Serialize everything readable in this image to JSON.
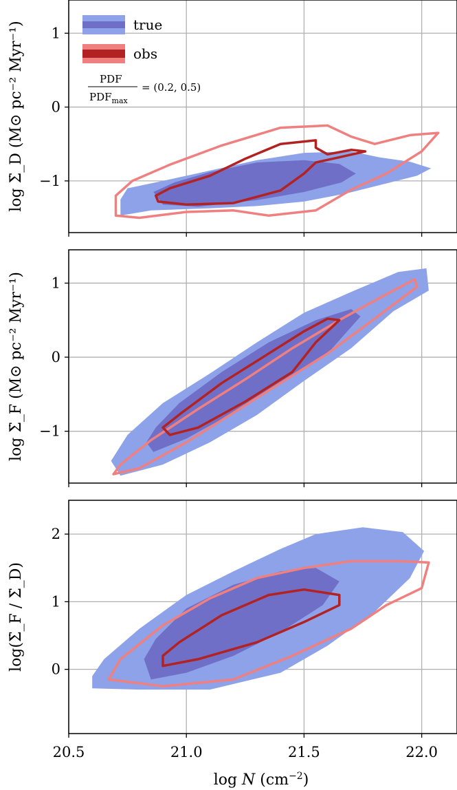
{
  "figure": {
    "x_axis": {
      "label": "log N (cm⁻²)",
      "range": [
        20.5,
        22.15
      ],
      "ticks": [
        20.5,
        21.0,
        21.5,
        22.0
      ],
      "tick_labels": [
        "20.5",
        "21.0",
        "21.5",
        "22.0"
      ]
    },
    "legend": {
      "entries": [
        {
          "label": "true",
          "color_outer": "#8da2e8",
          "color_inner": "#6f6fc7"
        },
        {
          "label": "obs",
          "color_outer": "#f08080",
          "color_inner": "#b22222"
        }
      ],
      "note": "PDF/PDFmax = (0.2, 0.5)"
    }
  },
  "chart_data": [
    {
      "type": "contour",
      "ylabel": "log Σ̇_D (M⊙ pc⁻² Myr⁻¹)",
      "ylim": [
        -1.7,
        1.45
      ],
      "yticks": [
        -1,
        0,
        1
      ],
      "ytick_labels": [
        "−1",
        "0",
        "1"
      ],
      "levels": [
        0.2,
        0.5
      ],
      "series": [
        {
          "name": "true",
          "level": 0.2,
          "fill": "#8da2e8",
          "points": [
            [
              20.72,
              -1.47
            ],
            [
              20.85,
              -1.4
            ],
            [
              21.1,
              -1.37
            ],
            [
              21.3,
              -1.34
            ],
            [
              21.5,
              -1.28
            ],
            [
              21.68,
              -1.17
            ],
            [
              21.83,
              -1.05
            ],
            [
              21.98,
              -0.93
            ],
            [
              22.04,
              -0.83
            ],
            [
              21.95,
              -0.74
            ],
            [
              21.82,
              -0.68
            ],
            [
              21.7,
              -0.6
            ],
            [
              21.5,
              -0.62
            ],
            [
              21.3,
              -0.72
            ],
            [
              21.1,
              -0.86
            ],
            [
              20.9,
              -1.0
            ],
            [
              20.75,
              -1.1
            ],
            [
              20.72,
              -1.25
            ]
          ]
        },
        {
          "name": "true",
          "level": 0.5,
          "fill": "#6f6fc7",
          "points": [
            [
              20.9,
              -1.32
            ],
            [
              21.05,
              -1.35
            ],
            [
              21.3,
              -1.26
            ],
            [
              21.5,
              -1.15
            ],
            [
              21.66,
              -1.02
            ],
            [
              21.72,
              -0.9
            ],
            [
              21.65,
              -0.77
            ],
            [
              21.5,
              -0.72
            ],
            [
              21.3,
              -0.75
            ],
            [
              21.1,
              -0.88
            ],
            [
              20.95,
              -1.02
            ],
            [
              20.86,
              -1.15
            ]
          ]
        },
        {
          "name": "obs",
          "level": 0.2,
          "stroke": "#f08080",
          "points": [
            [
              20.7,
              -1.47
            ],
            [
              20.8,
              -1.5
            ],
            [
              21.0,
              -1.42
            ],
            [
              21.2,
              -1.4
            ],
            [
              21.35,
              -1.47
            ],
            [
              21.55,
              -1.4
            ],
            [
              21.7,
              -1.12
            ],
            [
              21.85,
              -0.9
            ],
            [
              22.0,
              -0.6
            ],
            [
              22.07,
              -0.35
            ],
            [
              21.95,
              -0.38
            ],
            [
              21.8,
              -0.5
            ],
            [
              21.7,
              -0.4
            ],
            [
              21.6,
              -0.25
            ],
            [
              21.4,
              -0.28
            ],
            [
              21.15,
              -0.52
            ],
            [
              20.93,
              -0.78
            ],
            [
              20.77,
              -1.0
            ],
            [
              20.7,
              -1.2
            ]
          ]
        },
        {
          "name": "obs",
          "level": 0.5,
          "stroke": "#b22222",
          "points": [
            [
              20.88,
              -1.28
            ],
            [
              21.0,
              -1.32
            ],
            [
              21.2,
              -1.3
            ],
            [
              21.4,
              -1.13
            ],
            [
              21.5,
              -0.9
            ],
            [
              21.55,
              -0.75
            ],
            [
              21.65,
              -0.68
            ],
            [
              21.76,
              -0.6
            ],
            [
              21.7,
              -0.58
            ],
            [
              21.6,
              -0.64
            ],
            [
              21.55,
              -0.55
            ],
            [
              21.55,
              -0.45
            ],
            [
              21.4,
              -0.5
            ],
            [
              21.25,
              -0.7
            ],
            [
              21.1,
              -0.93
            ],
            [
              20.93,
              -1.1
            ],
            [
              20.87,
              -1.2
            ]
          ]
        }
      ]
    },
    {
      "type": "contour",
      "ylabel": "log Σ̇_F (M⊙ pc⁻² Myr⁻¹)",
      "ylim": [
        -1.7,
        1.45
      ],
      "yticks": [
        -1,
        0,
        1
      ],
      "ytick_labels": [
        "−1",
        "0",
        "1"
      ],
      "levels": [
        0.2,
        0.5
      ],
      "series": [
        {
          "name": "true",
          "level": 0.2,
          "fill": "#8da2e8",
          "points": [
            [
              20.72,
              -1.6
            ],
            [
              20.9,
              -1.45
            ],
            [
              21.1,
              -1.15
            ],
            [
              21.3,
              -0.78
            ],
            [
              21.5,
              -0.32
            ],
            [
              21.7,
              0.12
            ],
            [
              21.88,
              0.62
            ],
            [
              22.03,
              0.9
            ],
            [
              22.02,
              1.2
            ],
            [
              21.9,
              1.15
            ],
            [
              21.7,
              0.88
            ],
            [
              21.5,
              0.6
            ],
            [
              21.3,
              0.2
            ],
            [
              21.1,
              -0.22
            ],
            [
              20.9,
              -0.62
            ],
            [
              20.75,
              -1.05
            ],
            [
              20.68,
              -1.4
            ]
          ]
        },
        {
          "name": "true",
          "level": 0.5,
          "fill": "#6f6fc7",
          "points": [
            [
              20.86,
              -1.28
            ],
            [
              21.0,
              -1.1
            ],
            [
              21.2,
              -0.75
            ],
            [
              21.4,
              -0.35
            ],
            [
              21.6,
              0.05
            ],
            [
              21.74,
              0.55
            ],
            [
              21.7,
              0.65
            ],
            [
              21.55,
              0.5
            ],
            [
              21.35,
              0.2
            ],
            [
              21.15,
              -0.2
            ],
            [
              20.97,
              -0.62
            ],
            [
              20.87,
              -0.95
            ],
            [
              20.83,
              -1.15
            ]
          ]
        },
        {
          "name": "obs",
          "level": 0.2,
          "stroke": "#f08080",
          "points": [
            [
              20.69,
              -1.58
            ],
            [
              20.8,
              -1.5
            ],
            [
              21.0,
              -1.15
            ],
            [
              21.2,
              -0.75
            ],
            [
              21.4,
              -0.35
            ],
            [
              21.6,
              0.05
            ],
            [
              21.8,
              0.52
            ],
            [
              21.98,
              0.95
            ],
            [
              21.97,
              1.05
            ],
            [
              21.85,
              0.85
            ],
            [
              21.65,
              0.5
            ],
            [
              21.45,
              0.12
            ],
            [
              21.25,
              -0.3
            ],
            [
              21.05,
              -0.7
            ],
            [
              20.85,
              -1.12
            ],
            [
              20.72,
              -1.45
            ]
          ]
        },
        {
          "name": "obs",
          "level": 0.5,
          "stroke": "#b22222",
          "points": [
            [
              20.93,
              -1.05
            ],
            [
              21.05,
              -0.95
            ],
            [
              21.25,
              -0.6
            ],
            [
              21.45,
              -0.2
            ],
            [
              21.55,
              0.2
            ],
            [
              21.65,
              0.5
            ],
            [
              21.6,
              0.52
            ],
            [
              21.5,
              0.35
            ],
            [
              21.35,
              0.05
            ],
            [
              21.15,
              -0.35
            ],
            [
              20.98,
              -0.75
            ],
            [
              20.9,
              -0.95
            ]
          ]
        }
      ]
    },
    {
      "type": "contour",
      "ylabel": "log(Σ̇_F / Σ̇_D)",
      "ylim": [
        -0.95,
        2.5
      ],
      "yticks": [
        0,
        1,
        2
      ],
      "ytick_labels": [
        "0",
        "1",
        "2"
      ],
      "levels": [
        0.2,
        0.5
      ],
      "series": [
        {
          "name": "true",
          "level": 0.2,
          "fill": "#8da2e8",
          "points": [
            [
              20.6,
              -0.28
            ],
            [
              20.8,
              -0.3
            ],
            [
              21.1,
              -0.3
            ],
            [
              21.4,
              -0.05
            ],
            [
              21.6,
              0.35
            ],
            [
              21.8,
              0.85
            ],
            [
              21.95,
              1.35
            ],
            [
              22.01,
              1.75
            ],
            [
              21.92,
              2.03
            ],
            [
              21.75,
              2.1
            ],
            [
              21.55,
              2.0
            ],
            [
              21.4,
              1.78
            ],
            [
              21.2,
              1.45
            ],
            [
              21.0,
              1.1
            ],
            [
              20.8,
              0.6
            ],
            [
              20.65,
              0.15
            ],
            [
              20.6,
              -0.1
            ]
          ]
        },
        {
          "name": "true",
          "level": 0.5,
          "fill": "#6f6fc7",
          "points": [
            [
              20.85,
              -0.15
            ],
            [
              21.0,
              -0.05
            ],
            [
              21.2,
              0.2
            ],
            [
              21.4,
              0.55
            ],
            [
              21.58,
              0.95
            ],
            [
              21.65,
              1.3
            ],
            [
              21.55,
              1.5
            ],
            [
              21.4,
              1.45
            ],
            [
              21.2,
              1.25
            ],
            [
              21.0,
              0.9
            ],
            [
              20.87,
              0.45
            ],
            [
              20.82,
              0.15
            ]
          ]
        },
        {
          "name": "obs",
          "level": 0.2,
          "stroke": "#f08080",
          "points": [
            [
              20.67,
              -0.15
            ],
            [
              20.9,
              -0.25
            ],
            [
              21.2,
              -0.15
            ],
            [
              21.45,
              0.2
            ],
            [
              21.7,
              0.6
            ],
            [
              21.85,
              0.95
            ],
            [
              22.0,
              1.2
            ],
            [
              22.03,
              1.58
            ],
            [
              21.9,
              1.6
            ],
            [
              21.7,
              1.6
            ],
            [
              21.5,
              1.5
            ],
            [
              21.3,
              1.35
            ],
            [
              21.1,
              1.05
            ],
            [
              20.9,
              0.65
            ],
            [
              20.72,
              0.15
            ]
          ]
        },
        {
          "name": "obs",
          "level": 0.5,
          "stroke": "#b22222",
          "points": [
            [
              20.9,
              0.05
            ],
            [
              21.05,
              0.15
            ],
            [
              21.3,
              0.4
            ],
            [
              21.5,
              0.7
            ],
            [
              21.65,
              0.95
            ],
            [
              21.65,
              1.1
            ],
            [
              21.5,
              1.18
            ],
            [
              21.35,
              1.1
            ],
            [
              21.15,
              0.8
            ],
            [
              20.97,
              0.4
            ],
            [
              20.9,
              0.2
            ]
          ]
        }
      ]
    }
  ]
}
